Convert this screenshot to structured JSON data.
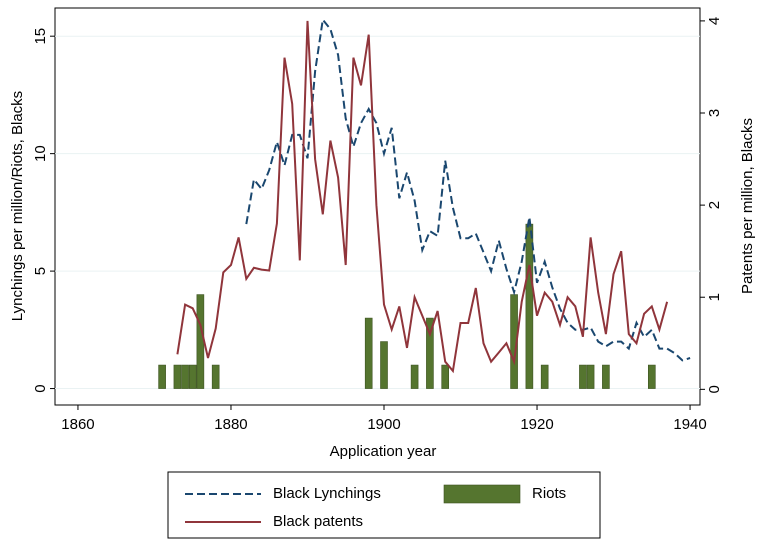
{
  "chart_data": {
    "type": "combo",
    "xlabel": "Application year",
    "ylabel": "Lynchings per million/Riots, Blacks",
    "y2label": "Patents per million, Blacks",
    "xlim": [
      1857,
      1941.3
    ],
    "xticks": [
      1860,
      1880,
      1900,
      1920,
      1940
    ],
    "ylim": [
      -0.7,
      16.2
    ],
    "yticks": [
      0,
      5,
      10,
      15
    ],
    "y2lim": [
      -0.17,
      4.14
    ],
    "y2ticks": [
      0,
      1,
      2,
      3,
      4
    ],
    "grid": true,
    "series": [
      {
        "name": "Black Lynchings",
        "type": "line",
        "dash": true,
        "color": "#1a476f",
        "axis": "y",
        "x": [
          1882,
          1883,
          1884,
          1885,
          1886,
          1887,
          1888,
          1889,
          1890,
          1891,
          1892,
          1893,
          1894,
          1895,
          1896,
          1897,
          1898,
          1899,
          1900,
          1901,
          1902,
          1903,
          1904,
          1905,
          1906,
          1907,
          1908,
          1909,
          1910,
          1911,
          1912,
          1913,
          1914,
          1915,
          1916,
          1917,
          1918,
          1919,
          1920,
          1921,
          1922,
          1923,
          1924,
          1925,
          1926,
          1927,
          1928,
          1929,
          1930,
          1931,
          1932,
          1933,
          1934,
          1935,
          1936,
          1937,
          1938,
          1939,
          1940
        ],
        "values": [
          7.0,
          8.9,
          8.5,
          9.3,
          10.5,
          9.5,
          10.8,
          10.8,
          9.8,
          13.5,
          15.7,
          15.3,
          14.2,
          11.5,
          10.3,
          11.3,
          11.9,
          11.3,
          10.0,
          11.1,
          8.1,
          9.2,
          8.0,
          5.9,
          6.7,
          6.5,
          9.7,
          7.7,
          6.4,
          6.4,
          6.6,
          5.8,
          5.0,
          6.3,
          5.1,
          4.1,
          5.4,
          7.3,
          4.5,
          5.4,
          4.3,
          3.4,
          2.8,
          2.5,
          2.5,
          2.6,
          2.0,
          1.8,
          2.0,
          2.0,
          1.7,
          2.8,
          2.2,
          2.5,
          1.7,
          1.7,
          1.5,
          1.2,
          1.3
        ]
      },
      {
        "name": "Riots",
        "type": "bar",
        "color": "#55752f",
        "axis": "y",
        "x": [
          1871,
          1873,
          1874,
          1875,
          1876,
          1878,
          1898,
          1900,
          1904,
          1906,
          1908,
          1917,
          1919,
          1921,
          1926,
          1927,
          1929,
          1935
        ],
        "values": [
          1,
          1,
          1,
          1,
          4,
          1,
          3,
          2,
          1,
          3,
          1,
          4,
          7,
          1,
          1,
          1,
          1,
          1
        ]
      },
      {
        "name": "Black patents",
        "type": "line",
        "color": "#90353b",
        "axis": "y2",
        "x": [
          1873,
          1874,
          1875,
          1876,
          1877,
          1878,
          1879,
          1880,
          1881,
          1882,
          1883,
          1884,
          1885,
          1886,
          1887,
          1888,
          1889,
          1890,
          1891,
          1892,
          1893,
          1894,
          1895,
          1896,
          1897,
          1898,
          1899,
          1900,
          1901,
          1902,
          1903,
          1904,
          1905,
          1906,
          1907,
          1908,
          1909,
          1910,
          1911,
          1912,
          1913,
          1914,
          1915,
          1916,
          1917,
          1918,
          1919,
          1920,
          1921,
          1922,
          1923,
          1924,
          1925,
          1926,
          1927,
          1928,
          1929,
          1930,
          1931,
          1932,
          1933,
          1934,
          1935,
          1936,
          1937
        ],
        "values": [
          0.38,
          0.92,
          0.88,
          0.7,
          0.34,
          0.66,
          1.27,
          1.35,
          1.65,
          1.2,
          1.32,
          1.3,
          1.29,
          1.8,
          3.6,
          3.1,
          1.4,
          4.0,
          2.5,
          1.9,
          2.7,
          2.3,
          1.35,
          3.6,
          3.3,
          3.85,
          2.0,
          0.92,
          0.65,
          0.9,
          0.45,
          1.0,
          0.8,
          0.6,
          0.85,
          0.3,
          0.2,
          0.72,
          0.72,
          1.1,
          0.5,
          0.3,
          0.4,
          0.5,
          0.3,
          0.95,
          1.35,
          0.8,
          1.05,
          0.95,
          0.7,
          1.0,
          0.9,
          0.57,
          1.65,
          1.05,
          0.6,
          1.25,
          1.5,
          0.6,
          0.5,
          0.82,
          0.9,
          0.65,
          0.95
        ]
      }
    ]
  }
}
